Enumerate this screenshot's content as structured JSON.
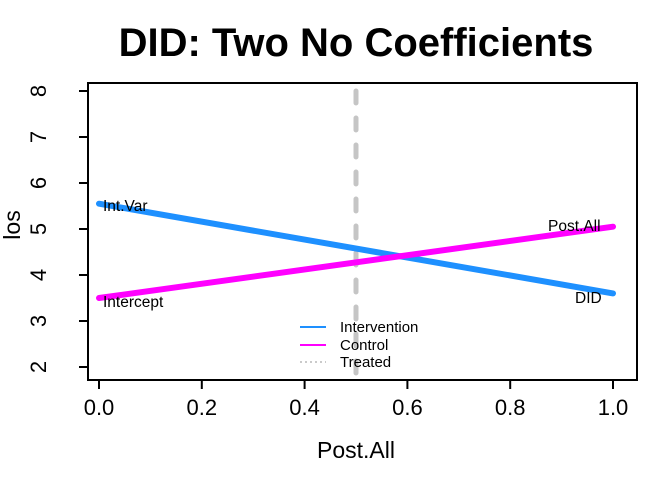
{
  "chart_data": {
    "type": "line",
    "title": "DID: Two No Coefficients",
    "xlabel": "Post.All",
    "ylabel": "los",
    "xlim": [
      0,
      1
    ],
    "ylim": [
      2,
      8
    ],
    "grid": false,
    "x_ticks": [
      0.0,
      0.2,
      0.4,
      0.6,
      0.8,
      1.0
    ],
    "x_tick_labels": [
      "0.0",
      "0.2",
      "0.4",
      "0.6",
      "0.8",
      "1.0"
    ],
    "y_ticks": [
      2,
      3,
      4,
      5,
      6,
      7,
      8
    ],
    "y_tick_labels": [
      "2",
      "3",
      "4",
      "5",
      "6",
      "7",
      "8"
    ],
    "series": [
      {
        "name": "Intervention",
        "color": "#1E90FF",
        "x": [
          0,
          1
        ],
        "y": [
          5.55,
          3.6
        ],
        "start_label": "Int.Var",
        "end_label": "DID"
      },
      {
        "name": "Control",
        "color": "#FF00FF",
        "x": [
          0,
          1
        ],
        "y": [
          3.5,
          5.05
        ],
        "start_label": "Intercept",
        "end_label": "Post.All"
      }
    ],
    "vline": {
      "name": "Treated",
      "x": 0.5,
      "color": "#C5C5C5",
      "style": "dashed"
    },
    "legend": {
      "position": "bottom-center",
      "entries": [
        {
          "label": "Intervention",
          "color": "#1E90FF",
          "style": "solid"
        },
        {
          "label": "Control",
          "color": "#FF00FF",
          "style": "solid"
        },
        {
          "label": "Treated",
          "color": "#B8B8B8",
          "style": "dotted"
        }
      ]
    }
  }
}
